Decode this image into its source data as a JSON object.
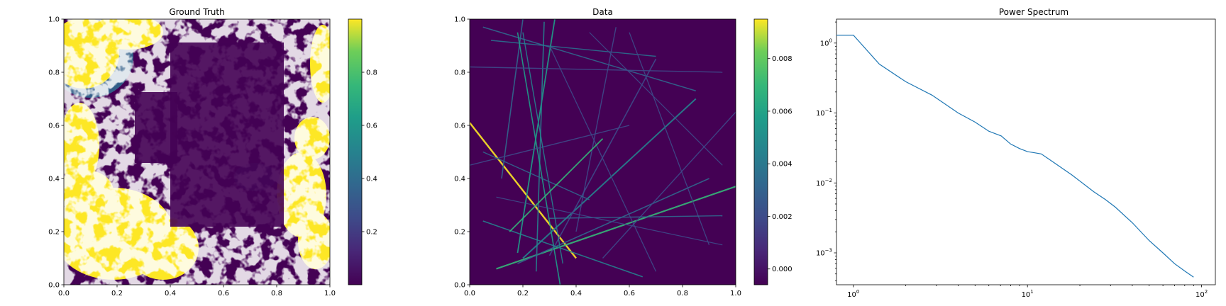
{
  "chart_data": [
    {
      "type": "heatmap",
      "title": "Ground Truth",
      "xlim": [
        0.0,
        1.0
      ],
      "ylim": [
        0.0,
        1.0
      ],
      "x_ticks": [
        "0.0",
        "0.2",
        "0.4",
        "0.6",
        "0.8",
        "1.0"
      ],
      "y_ticks": [
        "0.0",
        "0.2",
        "0.4",
        "0.6",
        "0.8",
        "1.0"
      ],
      "colormap": "viridis",
      "colorbar": {
        "range": [
          0.0,
          1.0
        ],
        "ticks": [
          "0.2",
          "0.4",
          "0.6",
          "0.8"
        ]
      },
      "description": "binary-like random field with high values in the top-left, left-middle, bottom-left and right edge regions",
      "grid": false
    },
    {
      "type": "heatmap",
      "title": "Data",
      "xlim": [
        0.0,
        1.0
      ],
      "ylim": [
        0.0,
        1.0
      ],
      "x_ticks": [
        "0.0",
        "0.2",
        "0.4",
        "0.6",
        "0.8",
        "1.0"
      ],
      "y_ticks": [
        "0.0",
        "0.2",
        "0.4",
        "0.6",
        "0.8",
        "1.0"
      ],
      "colormap": "viridis",
      "colorbar": {
        "range": [
          -0.0006,
          0.0095
        ],
        "ticks": [
          "0.000",
          "0.002",
          "0.004",
          "0.006",
          "0.008"
        ]
      },
      "description": "straight line projections (rays) crossing the unit square on a dark background",
      "grid": false
    },
    {
      "type": "line",
      "title": "Power Spectrum",
      "xscale": "log",
      "yscale": "log",
      "xlim": [
        0.8,
        120
      ],
      "ylim": [
        0.00035,
        2.2
      ],
      "x_ticks": [
        {
          "base": "10",
          "exp": "0"
        },
        {
          "base": "10",
          "exp": "1"
        },
        {
          "base": "10",
          "exp": "2"
        }
      ],
      "y_ticks": [
        {
          "base": "10",
          "exp": "0"
        },
        {
          "base": "10",
          "exp": "−1"
        },
        {
          "base": "10",
          "exp": "−2"
        },
        {
          "base": "10",
          "exp": "−3"
        }
      ],
      "series": [
        {
          "color": "#1f77b4",
          "x": [
            0.8,
            1.0,
            1.41,
            2.0,
            2.83,
            4.0,
            5.0,
            6.0,
            7.07,
            8.0,
            9.0,
            10.0,
            11.0,
            12.0,
            14.0,
            18.0,
            24.0,
            28.0,
            32.0,
            40.0,
            50.0,
            60.0,
            70.0,
            80.0,
            90.0
          ],
          "y": [
            1.3,
            1.3,
            0.5,
            0.28,
            0.18,
            0.1,
            0.074,
            0.055,
            0.047,
            0.036,
            0.031,
            0.028,
            0.027,
            0.026,
            0.02,
            0.013,
            0.0075,
            0.0058,
            0.0045,
            0.0027,
            0.0015,
            0.001,
            0.0007,
            0.00055,
            0.00045
          ]
        }
      ],
      "grid": false
    }
  ]
}
